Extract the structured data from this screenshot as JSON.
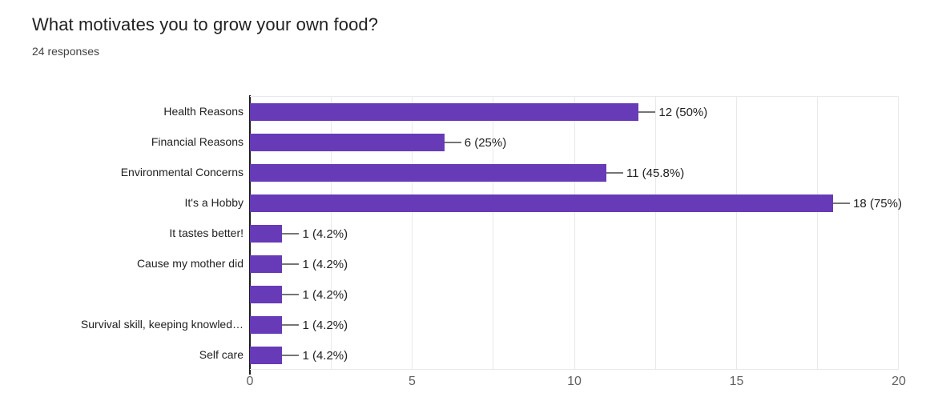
{
  "chart_data": {
    "type": "bar",
    "orientation": "horizontal",
    "title": "What motivates you to grow your own food?",
    "subtitle": "24 responses",
    "categories": [
      "Health Reasons",
      "Financial Reasons",
      "Environmental Concerns",
      "It's a Hobby",
      "It tastes better!",
      "Cause my mother did",
      "",
      "Survival skill, keeping knowled…",
      "Self care"
    ],
    "values": [
      12,
      6,
      11,
      18,
      1,
      1,
      1,
      1,
      1
    ],
    "value_labels": [
      "12 (50%)",
      "6 (25%)",
      "11 (45.8%)",
      "18 (75%)",
      "1 (4.2%)",
      "1 (4.2%)",
      "1 (4.2%)",
      "1 (4.2%)",
      "1 (4.2%)"
    ],
    "xlim": [
      0,
      20
    ],
    "x_ticks": [
      "0",
      "5",
      "10",
      "15",
      "20"
    ],
    "x_tick_values": [
      0,
      5,
      10,
      15,
      20
    ],
    "gridline_values": [
      2.5,
      5,
      7.5,
      10,
      12.5,
      15,
      17.5,
      20
    ],
    "grid": true,
    "legend": "none",
    "colors": {
      "bar": "#673ab7",
      "axis": "#1b1b1b",
      "grid": "#e9e9e9",
      "title_text": "#212121",
      "subtitle_text": "#424242",
      "category_text": "#212121",
      "value_text": "#212121",
      "tick_text": "#616161",
      "whisker": "#757575"
    }
  }
}
